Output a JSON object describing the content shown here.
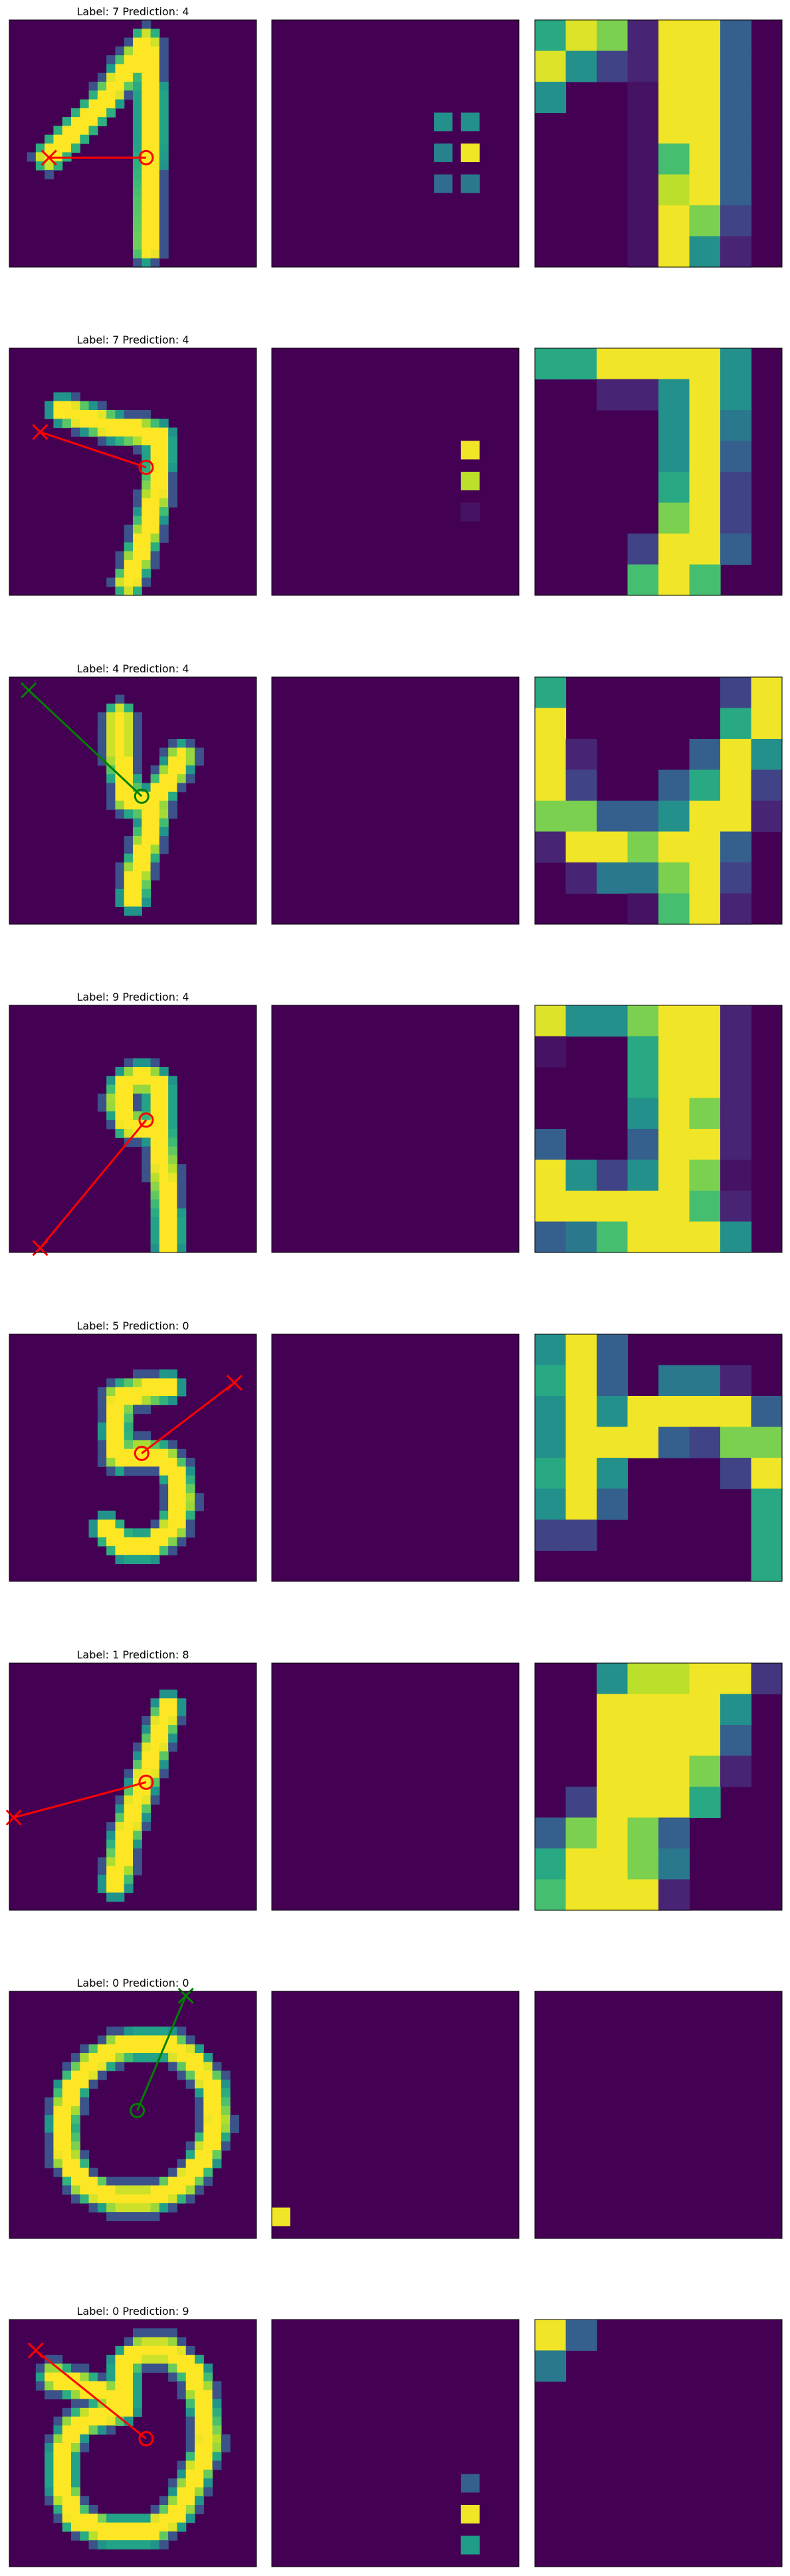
{
  "chart_data": [
    {
      "type": "heatmap",
      "title": "Label: 7 Prediction: 4",
      "label": 7,
      "prediction": 4,
      "correct": false,
      "arrow": {
        "start": [
          15.5,
          15.6
        ],
        "end": [
          4.5,
          15.6
        ],
        "color": "red"
      },
      "panels": [
        "input",
        "saliency",
        "zoom"
      ]
    },
    {
      "type": "heatmap",
      "title": "Label: 7 Prediction: 4",
      "label": 7,
      "prediction": 4,
      "correct": false,
      "arrow": {
        "start": [
          15.5,
          13.5
        ],
        "end": [
          3.5,
          9.5
        ],
        "color": "red"
      },
      "panels": [
        "input",
        "saliency",
        "zoom"
      ]
    },
    {
      "type": "heatmap",
      "title": "Label: 4 Prediction: 4",
      "label": 4,
      "prediction": 4,
      "correct": true,
      "arrow": {
        "start": [
          15.0,
          13.5
        ],
        "end": [
          2.2,
          1.5
        ],
        "color": "green"
      },
      "panels": [
        "input",
        "saliency",
        "zoom"
      ]
    },
    {
      "type": "heatmap",
      "title": "Label: 9 Prediction: 4",
      "label": 9,
      "prediction": 4,
      "correct": false,
      "arrow": {
        "start": [
          15.5,
          13.0
        ],
        "end": [
          3.5,
          27.5
        ],
        "color": "red"
      },
      "panels": [
        "input",
        "saliency",
        "zoom"
      ]
    },
    {
      "type": "heatmap",
      "title": "Label: 5 Prediction: 0",
      "label": 5,
      "prediction": 0,
      "correct": false,
      "arrow": {
        "start": [
          15.0,
          13.5
        ],
        "end": [
          25.5,
          5.5
        ],
        "color": "red"
      },
      "panels": [
        "input",
        "saliency",
        "zoom"
      ]
    },
    {
      "type": "heatmap",
      "title": "Label: 1 Prediction: 8",
      "label": 1,
      "prediction": 8,
      "correct": false,
      "arrow": {
        "start": [
          15.5,
          13.5
        ],
        "end": [
          0.5,
          17.5
        ],
        "color": "red"
      },
      "panels": [
        "input",
        "saliency",
        "zoom"
      ]
    },
    {
      "type": "heatmap",
      "title": "Label: 0 Prediction: 0",
      "label": 0,
      "prediction": 0,
      "correct": true,
      "arrow": {
        "start": [
          14.5,
          13.5
        ],
        "end": [
          20.0,
          0.5
        ],
        "color": "green"
      },
      "panels": [
        "input",
        "saliency",
        "zoom"
      ]
    },
    {
      "type": "heatmap",
      "title": "Label: 0 Prediction: 9",
      "label": 0,
      "prediction": 9,
      "correct": false,
      "arrow": {
        "start": [
          15.5,
          13.5
        ],
        "end": [
          3.0,
          3.5
        ],
        "color": "red"
      },
      "panels": [
        "input",
        "saliency",
        "zoom"
      ]
    }
  ],
  "colors": {
    "bg": "#440154",
    "green": "#008000",
    "red": "#ff0000"
  }
}
